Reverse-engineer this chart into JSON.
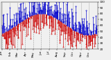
{
  "title": "",
  "ylim": [
    20,
    100
  ],
  "yticks": [
    20,
    30,
    40,
    50,
    60,
    70,
    80,
    90,
    100
  ],
  "background_color": "#f0f0f0",
  "bar_color_above": "#0000cc",
  "bar_color_below": "#cc0000",
  "num_days": 365,
  "mean_humidity": 62,
  "amplitude": 18,
  "grid_color": "#888888",
  "tick_fontsize": 3.0,
  "seed": 42,
  "month_starts": [
    0,
    31,
    59,
    90,
    120,
    151,
    181,
    212,
    243,
    273,
    304,
    334
  ],
  "month_labels": [
    "Jan",
    "Feb",
    "Mar",
    "Apr",
    "May",
    "Jun",
    "Jul",
    "Aug",
    "Sep",
    "Oct",
    "Nov",
    "Dec"
  ]
}
